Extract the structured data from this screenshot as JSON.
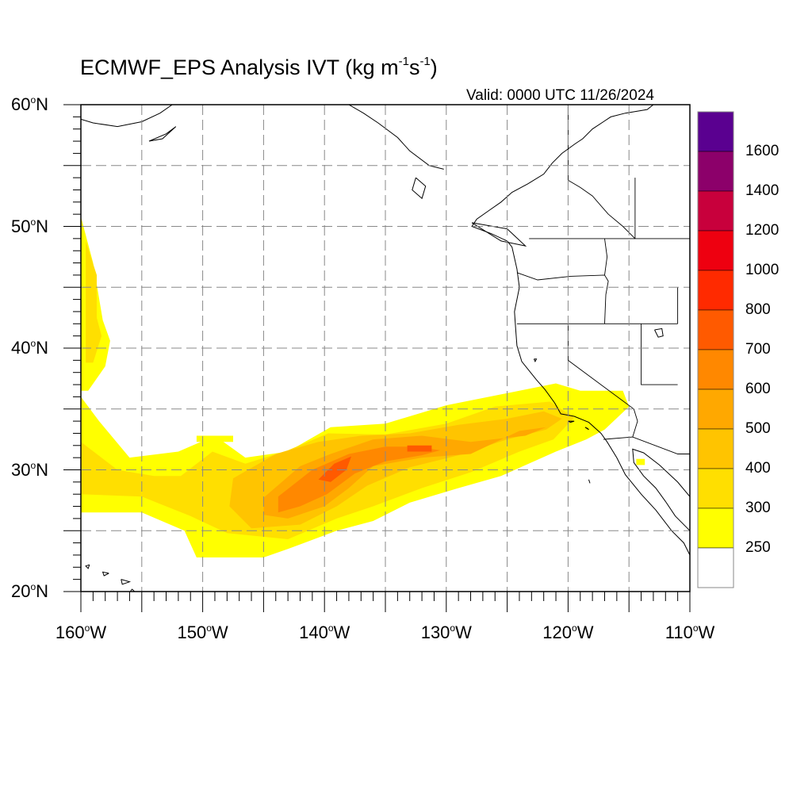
{
  "title": {
    "base": "ECMWF_EPS Analysis IVT (kg m",
    "exp1": "-1",
    "mid": "s",
    "exp2": "-1",
    "close": ")"
  },
  "valid_text": "Valid: 0000 UTC 11/26/2024",
  "map": {
    "lon_range": [
      -160,
      -110
    ],
    "lat_range": [
      20,
      60
    ],
    "gridline_lons": [
      -155,
      -150,
      -145,
      -140,
      -135,
      -130,
      -125,
      -120,
      -115
    ],
    "gridline_lats": [
      25,
      30,
      35,
      40,
      45,
      50,
      55
    ],
    "lat_labels": [
      {
        "lat": 60,
        "num": "60",
        "suffix": "N"
      },
      {
        "lat": 50,
        "num": "50",
        "suffix": "N"
      },
      {
        "lat": 40,
        "num": "40",
        "suffix": "N"
      },
      {
        "lat": 30,
        "num": "30",
        "suffix": "N"
      },
      {
        "lat": 20,
        "num": "20",
        "suffix": "N"
      }
    ],
    "lon_labels": [
      {
        "lon": -160,
        "num": "160",
        "suffix": "W"
      },
      {
        "lon": -150,
        "num": "150",
        "suffix": "W"
      },
      {
        "lon": -140,
        "num": "140",
        "suffix": "W"
      },
      {
        "lon": -130,
        "num": "130",
        "suffix": "W"
      },
      {
        "lon": -120,
        "num": "120",
        "suffix": "W"
      },
      {
        "lon": -110,
        "num": "110",
        "suffix": "W"
      }
    ],
    "colors": {
      "lt250": "#ffffff",
      "c250": "#ffff00",
      "c300": "#ffdf00",
      "c400": "#ffc400",
      "c500": "#ffa800",
      "c600": "#ff8800",
      "c700": "#ff5a00",
      "c800": "#ff2a00",
      "c1000": "#ee0010",
      "c1200": "#c8003c",
      "c1400": "#8c006a",
      "c1600": "#5a0090"
    }
  },
  "colorbar": {
    "labels": [
      "1600",
      "1400",
      "1200",
      "1000",
      "800",
      "700",
      "600",
      "500",
      "400",
      "300",
      "250"
    ],
    "colors": [
      "#5a0090",
      "#8c006a",
      "#c8003c",
      "#ee0010",
      "#ff2a00",
      "#ff5a00",
      "#ff8800",
      "#ffa800",
      "#ffc400",
      "#ffdf00",
      "#ffff00",
      "#ffffff"
    ]
  },
  "ivt_regions": [
    {
      "level": 250,
      "pts": [
        [
          -160,
          36
        ],
        [
          -158.5,
          34
        ],
        [
          -156,
          31
        ],
        [
          -152,
          31.5
        ],
        [
          -149,
          32.8
        ],
        [
          -146.5,
          31
        ],
        [
          -143,
          31.5
        ],
        [
          -139.5,
          33.5
        ],
        [
          -135,
          33.8
        ],
        [
          -130,
          35.3
        ],
        [
          -126.5,
          36
        ],
        [
          -121,
          37.1
        ],
        [
          -119,
          36.5
        ],
        [
          -115.5,
          36.5
        ],
        [
          -115,
          35.2
        ],
        [
          -117,
          33.3
        ],
        [
          -118.5,
          32.5
        ],
        [
          -121,
          31.5
        ],
        [
          -125.5,
          29.5
        ],
        [
          -129,
          28.5
        ],
        [
          -133,
          27.3
        ],
        [
          -136,
          25.8
        ],
        [
          -139,
          25
        ],
        [
          -143,
          23.5
        ],
        [
          -145,
          22.8
        ],
        [
          -150.5,
          22.8
        ],
        [
          -151.5,
          25
        ],
        [
          -155,
          26.5
        ],
        [
          -160,
          26.5
        ]
      ]
    },
    {
      "level": 250,
      "pts": [
        [
          -160,
          50.8
        ],
        [
          -159,
          47
        ],
        [
          -158.2,
          42.3
        ],
        [
          -157.6,
          40.6
        ],
        [
          -158,
          38.5
        ],
        [
          -159.4,
          36.5
        ],
        [
          -160,
          36.5
        ]
      ]
    },
    {
      "level": 250,
      "pts": [
        [
          -150.5,
          32.8
        ],
        [
          -147.5,
          32.8
        ],
        [
          -147.5,
          32.3
        ],
        [
          -150.5,
          32.3
        ]
      ]
    },
    {
      "level": 250,
      "pts": [
        [
          -114.4,
          30.9
        ],
        [
          -113.7,
          30.9
        ],
        [
          -113.7,
          30.4
        ],
        [
          -114.4,
          30.4
        ]
      ]
    },
    {
      "level": 300,
      "pts": [
        [
          -160,
          32.3
        ],
        [
          -157,
          30
        ],
        [
          -154,
          29.5
        ],
        [
          -151.8,
          29.5
        ],
        [
          -149.2,
          31.5
        ],
        [
          -146.5,
          30.5
        ],
        [
          -143,
          31.6
        ],
        [
          -139.7,
          33
        ],
        [
          -135,
          32.9
        ],
        [
          -130,
          33.8
        ],
        [
          -126,
          35.2
        ],
        [
          -121.5,
          35.6
        ],
        [
          -119.5,
          34.3
        ],
        [
          -121.2,
          32.5
        ],
        [
          -124,
          31.5
        ],
        [
          -128,
          29.8
        ],
        [
          -132,
          28.5
        ],
        [
          -136,
          27
        ],
        [
          -139,
          26
        ],
        [
          -143,
          24.3
        ],
        [
          -148,
          24.8
        ],
        [
          -151,
          26.2
        ],
        [
          -155,
          27.8
        ],
        [
          -160,
          28
        ]
      ]
    },
    {
      "level": 300,
      "pts": [
        [
          -159.6,
          48.8
        ],
        [
          -158.7,
          46
        ],
        [
          -158.7,
          42.5
        ],
        [
          -158.3,
          41
        ],
        [
          -159,
          38.8
        ],
        [
          -159.6,
          38.8
        ]
      ]
    },
    {
      "level": 400,
      "pts": [
        [
          -147.5,
          29.3
        ],
        [
          -144,
          31.3
        ],
        [
          -140.5,
          32.3
        ],
        [
          -137,
          32.8
        ],
        [
          -133,
          33
        ],
        [
          -129,
          33.7
        ],
        [
          -125,
          34.2
        ],
        [
          -122,
          34.8
        ],
        [
          -120.5,
          34.2
        ],
        [
          -121.8,
          33.3
        ],
        [
          -125,
          32.5
        ],
        [
          -129,
          31.2
        ],
        [
          -133,
          30.2
        ],
        [
          -136.5,
          28.7
        ],
        [
          -139,
          27
        ],
        [
          -142,
          25.5
        ],
        [
          -146,
          25.2
        ],
        [
          -147.8,
          27
        ]
      ]
    },
    {
      "level": 500,
      "pts": [
        [
          -145,
          27.7
        ],
        [
          -142,
          30.3
        ],
        [
          -139.5,
          31.3
        ],
        [
          -136,
          32.5
        ],
        [
          -132,
          32.8
        ],
        [
          -128,
          32.3
        ],
        [
          -123.5,
          32.8
        ],
        [
          -121.8,
          33.5
        ],
        [
          -124,
          33.2
        ],
        [
          -128,
          31.3
        ],
        [
          -132,
          31
        ],
        [
          -136,
          30.3
        ],
        [
          -138,
          28.5
        ],
        [
          -140,
          27
        ],
        [
          -143,
          26
        ],
        [
          -145,
          26.3
        ]
      ]
    },
    {
      "level": 600,
      "pts": [
        [
          -143.8,
          27.8
        ],
        [
          -141,
          30
        ],
        [
          -138,
          31.3
        ],
        [
          -135,
          31.9
        ],
        [
          -132.5,
          31.9
        ],
        [
          -130.5,
          31.6
        ],
        [
          -132,
          31.2
        ],
        [
          -135,
          30.7
        ],
        [
          -137.5,
          29.7
        ],
        [
          -139.8,
          28
        ],
        [
          -142,
          27
        ],
        [
          -143.8,
          26.5
        ]
      ]
    },
    {
      "level": 700,
      "pts": [
        [
          -140.5,
          29.2
        ],
        [
          -139.2,
          30.5
        ],
        [
          -137.8,
          31.1
        ],
        [
          -138.2,
          30
        ],
        [
          -139.5,
          29
        ]
      ]
    },
    {
      "level": 700,
      "pts": [
        [
          -133.2,
          32
        ],
        [
          -131.2,
          32
        ],
        [
          -131.2,
          31.5
        ],
        [
          -133.2,
          31.5
        ]
      ]
    }
  ],
  "land": {
    "coastline": [
      [
        -113,
        60
      ],
      [
        -113.5,
        59.6
      ],
      [
        -115.3,
        59.3
      ],
      [
        -116.5,
        59
      ],
      [
        -118,
        58
      ],
      [
        -118.8,
        57.2
      ],
      [
        -119.4,
        56.8
      ],
      [
        -120.5,
        56
      ],
      [
        -121.3,
        55.2
      ],
      [
        -122,
        54.3
      ],
      [
        -123.3,
        53.5
      ],
      [
        -124.6,
        52.8
      ],
      [
        -125.5,
        52
      ],
      [
        -126.5,
        51.3
      ],
      [
        -127.5,
        50.6
      ],
      [
        -127.9,
        50
      ],
      [
        -126.3,
        49.4
      ],
      [
        -125,
        48.8
      ],
      [
        -124.6,
        48.3
      ],
      [
        -124.2,
        46.5
      ],
      [
        -124,
        45
      ],
      [
        -124.4,
        43
      ],
      [
        -124.3,
        41.5
      ],
      [
        -124.2,
        40.2
      ],
      [
        -123.8,
        38.9
      ],
      [
        -122.6,
        37.4
      ],
      [
        -121.9,
        36.6
      ],
      [
        -121.1,
        35.5
      ],
      [
        -120.6,
        34.6
      ],
      [
        -119.5,
        34.4
      ],
      [
        -118.3,
        33.9
      ],
      [
        -117.3,
        33
      ],
      [
        -116.8,
        32.3
      ],
      [
        -116,
        31
      ],
      [
        -115.3,
        29.6
      ],
      [
        -114,
        28
      ],
      [
        -112.8,
        26.7
      ],
      [
        -111.5,
        25
      ],
      [
        -110.5,
        24
      ],
      [
        -110,
        23
      ]
    ],
    "gulf_coast": [
      [
        -110,
        27.8
      ],
      [
        -111,
        29
      ],
      [
        -112.5,
        30.4
      ],
      [
        -113.8,
        31.4
      ],
      [
        -114.7,
        31.7
      ],
      [
        -114.6,
        30.6
      ],
      [
        -113.8,
        29.5
      ],
      [
        -112.8,
        28.5
      ],
      [
        -112,
        27.4
      ],
      [
        -111.2,
        26.2
      ],
      [
        -110,
        25
      ]
    ],
    "borders": [
      [
        [
          -123.2,
          49
        ],
        [
          -110,
          49
        ]
      ],
      [
        [
          -124.2,
          46.2
        ],
        [
          -122.5,
          45.6
        ],
        [
          -119.8,
          45.9
        ],
        [
          -117,
          46
        ],
        [
          -116.7,
          45.5
        ],
        [
          -116.9,
          44.4
        ],
        [
          -117,
          42
        ]
      ],
      [
        [
          -124.2,
          42
        ],
        [
          -111,
          42
        ]
      ],
      [
        [
          -120,
          42
        ],
        [
          -120,
          39
        ],
        [
          -114.6,
          35
        ]
      ],
      [
        [
          -117,
          49
        ],
        [
          -116.8,
          47.5
        ],
        [
          -117,
          46
        ]
      ],
      [
        [
          -114,
          42
        ],
        [
          -114,
          37
        ],
        [
          -111,
          37
        ]
      ],
      [
        [
          -114.6,
          35
        ],
        [
          -114.3,
          34
        ],
        [
          -114.7,
          32.7
        ]
      ],
      [
        [
          -117.1,
          32.5
        ],
        [
          -114.7,
          32.7
        ],
        [
          -111,
          31.3
        ],
        [
          -110,
          31.3
        ]
      ],
      [
        [
          -111,
          45
        ],
        [
          -111,
          42
        ]
      ],
      [
        [
          -114.5,
          54
        ],
        [
          -114.5,
          49
        ]
      ],
      [
        [
          -120,
          60
        ],
        [
          -120,
          53.8
        ],
        [
          -119,
          53.2
        ],
        [
          -118,
          52.5
        ],
        [
          -116.7,
          51
        ],
        [
          -115.5,
          50
        ],
        [
          -114.5,
          49
        ]
      ]
    ],
    "alaska": [
      [
        -138,
        60
      ],
      [
        -136.8,
        59.3
      ],
      [
        -135.6,
        58.5
      ],
      [
        -134,
        57.3
      ],
      [
        -133,
        56.2
      ],
      [
        -131.4,
        55
      ],
      [
        -130.2,
        54.7
      ]
    ],
    "islands": [
      [
        [
          -145,
          60
        ],
        [
          -146.5,
          60.3
        ],
        [
          -148,
          60.2
        ]
      ],
      [
        [
          -152.5,
          60
        ],
        [
          -153.5,
          59.3
        ],
        [
          -155,
          58.6
        ],
        [
          -157,
          58.2
        ],
        [
          -159,
          58.5
        ],
        [
          -160,
          58.8
        ]
      ],
      [
        [
          -152.2,
          58.2
        ],
        [
          -153,
          57.6
        ],
        [
          -154.4,
          57
        ],
        [
          -153.3,
          57.2
        ],
        [
          -152.2,
          58.2
        ]
      ],
      [
        [
          -155.8,
          20.2
        ],
        [
          -156,
          19.9
        ],
        [
          -155.5,
          19.9
        ],
        [
          -155.8,
          20.2
        ]
      ],
      [
        [
          -156.7,
          21
        ],
        [
          -156,
          20.8
        ],
        [
          -156.6,
          20.6
        ],
        [
          -156.7,
          21
        ]
      ],
      [
        [
          -157.7,
          21.5
        ],
        [
          -158.2,
          21.6
        ],
        [
          -158.1,
          21.3
        ],
        [
          -157.7,
          21.5
        ]
      ],
      [
        [
          -159.3,
          22.2
        ],
        [
          -159.6,
          22.1
        ],
        [
          -159.4,
          21.9
        ],
        [
          -159.3,
          22.2
        ]
      ],
      [
        [
          -132.5,
          54
        ],
        [
          -131.7,
          53.3
        ],
        [
          -132,
          52.3
        ],
        [
          -132.8,
          53
        ],
        [
          -132.5,
          54
        ]
      ],
      [
        [
          -127.9,
          50.3
        ],
        [
          -125,
          49.8
        ],
        [
          -123.5,
          48.4
        ],
        [
          -125.5,
          48.8
        ],
        [
          -127.9,
          50.3
        ]
      ],
      [
        [
          -118.4,
          33.4
        ],
        [
          -118.6,
          33.5
        ],
        [
          -118.3,
          33.3
        ],
        [
          -118.4,
          33.4
        ]
      ],
      [
        [
          -120,
          34
        ],
        [
          -119.5,
          34
        ],
        [
          -119.8,
          33.9
        ],
        [
          -120,
          34
        ]
      ],
      [
        [
          -118.3,
          29.2
        ],
        [
          -118.2,
          28.9
        ]
      ]
    ],
    "lakes": [
      [
        [
          -112.9,
          41.5
        ],
        [
          -112.3,
          41.6
        ],
        [
          -112.2,
          41
        ],
        [
          -112.6,
          40.9
        ],
        [
          -112.9,
          41.5
        ]
      ],
      [
        [
          -122.8,
          39.1
        ],
        [
          -122.6,
          39.1
        ],
        [
          -122.7,
          38.9
        ],
        [
          -122.8,
          39.1
        ]
      ]
    ]
  }
}
